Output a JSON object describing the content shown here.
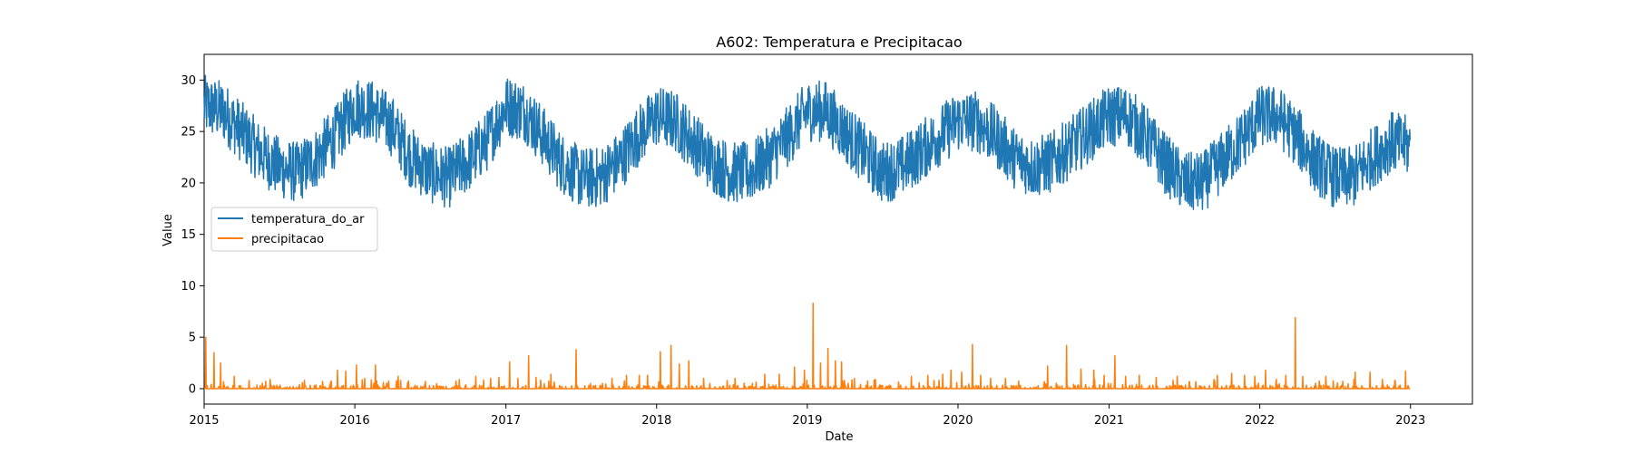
{
  "chart_data": {
    "type": "line",
    "title": "A602: Temperatura e Precipitacao",
    "xlabel": "Date",
    "ylabel": "Value",
    "xlim": [
      "2015-01-01",
      "2023-05-31"
    ],
    "ylim": [
      -1.5,
      32.5
    ],
    "x_ticks": [
      "2015",
      "2016",
      "2017",
      "2018",
      "2019",
      "2020",
      "2021",
      "2022",
      "2023"
    ],
    "y_ticks": [
      "0",
      "5",
      "10",
      "15",
      "20",
      "25",
      "30"
    ],
    "legend_position": "center-left",
    "grid": false,
    "series": [
      {
        "name": "temperatura_do_ar",
        "color": "#1f77b4",
        "x": [
          "2015-01-01",
          "2015-02-15",
          "2015-04-01",
          "2015-05-15",
          "2015-07-01",
          "2015-08-15",
          "2015-10-01",
          "2015-11-15",
          "2016-01-01",
          "2016-02-15",
          "2016-04-01",
          "2016-05-15",
          "2016-07-01",
          "2016-08-15",
          "2016-10-01",
          "2016-11-15",
          "2017-01-01",
          "2017-02-15",
          "2017-04-01",
          "2017-05-15",
          "2017-07-01",
          "2017-08-15",
          "2017-10-01",
          "2017-11-15",
          "2018-01-01",
          "2018-02-15",
          "2018-04-01",
          "2018-05-15",
          "2018-07-01",
          "2018-08-15",
          "2018-10-01",
          "2018-11-15",
          "2019-01-01",
          "2019-02-15",
          "2019-04-01",
          "2019-05-15",
          "2019-07-01",
          "2019-08-15",
          "2019-10-01",
          "2019-11-15",
          "2020-01-01",
          "2020-02-15",
          "2020-04-01",
          "2020-05-15",
          "2020-07-01",
          "2020-08-15",
          "2020-10-01",
          "2020-11-15",
          "2021-01-01",
          "2021-02-15",
          "2021-04-01",
          "2021-05-15",
          "2021-07-01",
          "2021-08-15",
          "2021-10-01",
          "2021-11-15",
          "2022-01-01",
          "2022-02-15",
          "2022-04-01",
          "2022-05-15",
          "2022-07-01",
          "2022-08-15",
          "2022-10-01",
          "2022-11-15",
          "2022-12-31"
        ],
        "y": [
          27.5,
          27.0,
          25.0,
          23.0,
          21.5,
          21.0,
          22.5,
          24.5,
          27.5,
          27.0,
          25.5,
          22.5,
          21.0,
          20.5,
          22.0,
          24.0,
          27.5,
          27.0,
          24.5,
          22.0,
          20.5,
          20.5,
          22.0,
          24.5,
          26.5,
          26.0,
          24.0,
          22.0,
          21.0,
          21.0,
          22.5,
          24.5,
          27.0,
          27.0,
          25.0,
          23.0,
          21.0,
          21.5,
          23.0,
          24.5,
          26.0,
          26.0,
          24.5,
          22.5,
          21.5,
          22.0,
          23.5,
          25.0,
          26.5,
          26.5,
          24.5,
          22.0,
          20.0,
          20.0,
          22.0,
          24.0,
          26.5,
          26.5,
          24.5,
          22.0,
          20.5,
          20.5,
          22.5,
          24.0,
          23.5
        ]
      },
      {
        "name": "precipitacao",
        "color": "#ff7f0e",
        "x": [
          "2015-01-05",
          "2015-01-25",
          "2015-02-10",
          "2015-03-15",
          "2015-04-20",
          "2015-06-10",
          "2015-09-01",
          "2015-10-15",
          "2015-11-20",
          "2015-12-10",
          "2016-01-05",
          "2016-01-25",
          "2016-02-20",
          "2016-03-10",
          "2016-04-15",
          "2016-06-20",
          "2016-09-10",
          "2016-10-20",
          "2016-11-25",
          "2016-12-15",
          "2017-01-10",
          "2017-01-30",
          "2017-02-25",
          "2017-03-15",
          "2017-04-20",
          "2017-06-20",
          "2017-07-25",
          "2017-09-15",
          "2017-10-20",
          "2017-11-20",
          "2017-12-10",
          "2018-01-10",
          "2018-02-05",
          "2018-02-25",
          "2018-03-20",
          "2018-04-25",
          "2018-07-10",
          "2018-09-20",
          "2018-10-25",
          "2018-12-01",
          "2018-12-25",
          "2019-01-15",
          "2019-02-02",
          "2019-02-20",
          "2019-03-10",
          "2019-03-25",
          "2019-04-25",
          "2019-06-15",
          "2019-09-10",
          "2019-10-20",
          "2019-11-25",
          "2019-12-15",
          "2020-01-10",
          "2020-02-05",
          "2020-02-25",
          "2020-03-20",
          "2020-04-25",
          "2020-08-05",
          "2020-09-20",
          "2020-10-25",
          "2020-11-25",
          "2020-12-20",
          "2021-01-15",
          "2021-02-10",
          "2021-03-15",
          "2021-04-25",
          "2021-06-15",
          "2021-09-20",
          "2021-10-25",
          "2021-11-25",
          "2021-12-20",
          "2022-01-15",
          "2022-02-10",
          "2022-03-05",
          "2022-03-28",
          "2022-04-15",
          "2022-06-10",
          "2022-08-20",
          "2022-09-25",
          "2022-10-25",
          "2022-11-25",
          "2022-12-20"
        ],
        "y": [
          5.0,
          3.5,
          2.5,
          1.2,
          0.8,
          0.9,
          0.8,
          0.7,
          1.8,
          1.7,
          2.3,
          1.0,
          2.3,
          0.6,
          1.2,
          0.7,
          0.9,
          1.2,
          1.0,
          1.1,
          2.6,
          1.0,
          3.2,
          1.1,
          1.4,
          3.8,
          0.5,
          1.0,
          1.3,
          1.3,
          1.3,
          3.6,
          4.2,
          2.4,
          2.7,
          1.0,
          1.0,
          1.4,
          1.4,
          2.1,
          1.8,
          8.3,
          2.5,
          3.9,
          2.7,
          2.6,
          1.0,
          0.9,
          1.2,
          1.3,
          1.4,
          1.8,
          1.6,
          4.3,
          1.3,
          1.0,
          1.0,
          2.2,
          4.2,
          1.9,
          1.8,
          1.3,
          3.2,
          1.2,
          1.3,
          1.1,
          1.2,
          1.3,
          1.5,
          1.3,
          1.2,
          1.8,
          0.9,
          1.3,
          6.9,
          1.2,
          1.2,
          1.6,
          1.6,
          0.9,
          0.8,
          1.7
        ]
      }
    ]
  }
}
